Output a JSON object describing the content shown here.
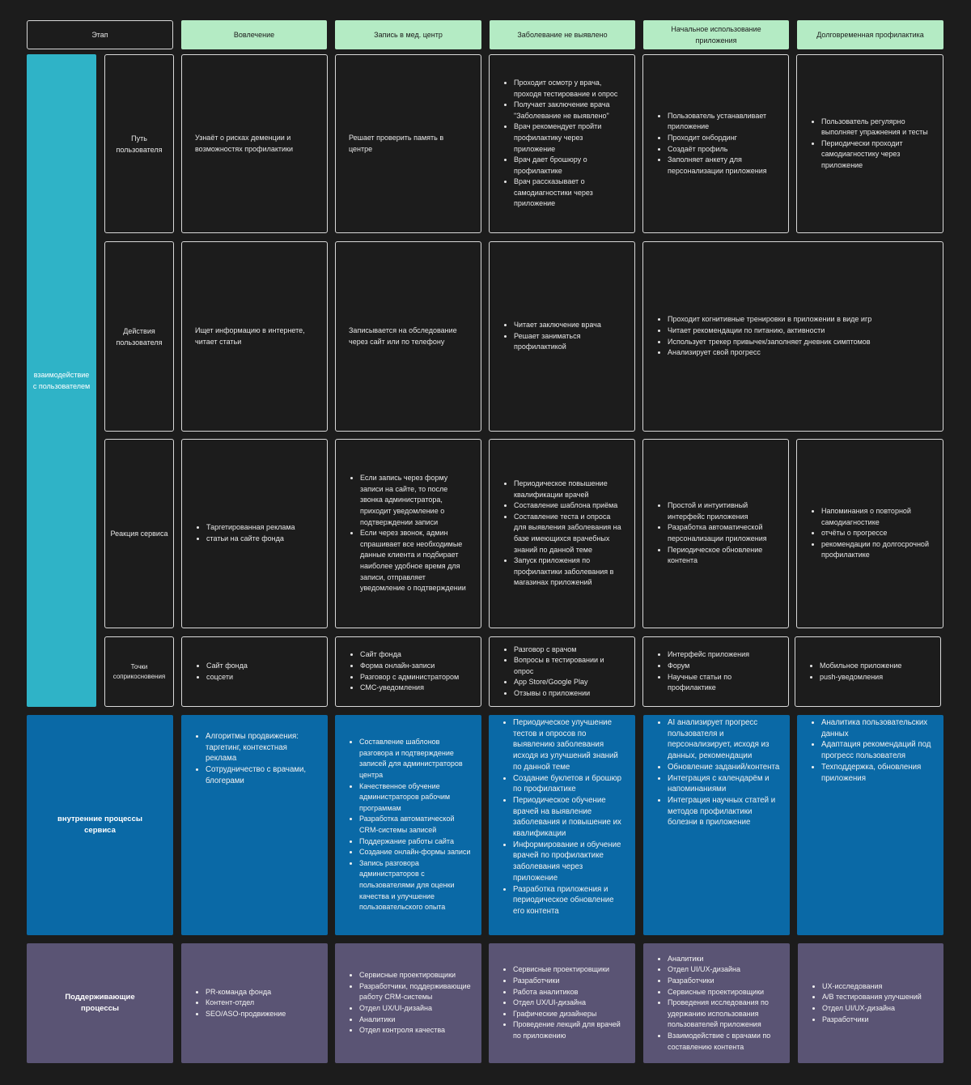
{
  "headers": {
    "stage": "Этап",
    "engagement": "Вовлечение",
    "registration": "Запись в мед. центр",
    "no_disease": "Заболевание не выявлено",
    "initial_use": "Начальное использование приложения",
    "long_term": "Долговременная профилактика"
  },
  "side": {
    "user_interaction": "взаимодействие с пользователем",
    "internal_processes": "внутренние процессы сервиса",
    "support_processes": "Поддерживающие процессы"
  },
  "rows": {
    "user_path": "Путь пользователя",
    "user_actions": "Действия пользователя",
    "service_reaction": "Реакция сервиса",
    "touchpoints": "Точки соприкосновения"
  },
  "path": {
    "engagement": "Узнаёт о рисках деменции и возможностях профилактики",
    "registration": "Решает проверить память в центре",
    "no_disease": [
      "Проходит осмотр у врача, проходя тестирование и опрос",
      "Получает заключение врача \"Заболевание не выявлено\"",
      "Врач рекомендует пройти профилактику через приложение",
      "Врач дает брошюру о профилактике",
      "Врач рассказывает о самодиагностики через приложение"
    ],
    "initial_use": [
      "Пользователь устанавливает приложение",
      "Проходит онбординг",
      "Создаёт профиль",
      "Заполняет анкету для персонализации приложения"
    ],
    "long_term": [
      "Пользователь регулярно выполняет упражнения и тесты",
      "Периодически проходит самодиагностику через приложение"
    ]
  },
  "actions": {
    "engagement": "Ищет информацию в интернете, читает статьи",
    "registration": "Записывается на обследование через сайт или по телефону",
    "no_disease": [
      "Читает заключение врача",
      "Решает заниматься профилактикой"
    ],
    "app": [
      "Проходит когнитивные тренировки в приложении в виде игр",
      "Читает рекомендации по питанию, активности",
      "Использует трекер привычек/заполняет дневник симптомов",
      "Анализирует свой прогресс"
    ]
  },
  "reaction": {
    "engagement": [
      "Таргетированная реклама",
      "статьи на сайте фонда"
    ],
    "registration": [
      "Если запись через форму записи на сайте, то после звонка администратора, приходит уведомление о подтверждении записи",
      "Если через звонок, админ спрашивает все необходимые данные клиента и подбирает наиболее удобное время для записи, отправляет уведомление о подтверждении"
    ],
    "no_disease": [
      "Периодическое повышение квалификации врачей",
      "Составление шаблона приёма",
      "Составление теста и опроса для выявления заболевания на базе имеющихся врачебных знаний по данной теме",
      "Запуск приложения по профилактики заболевания в магазинах приложений"
    ],
    "initial_use": [
      "Простой и интуитивный интерфейс приложения",
      "Разработка автоматической персонализации приложения",
      "Периодическое обновление контента"
    ],
    "long_term": [
      "Напоминания о повторной самодиагностике",
      "отчёты о прогрессе",
      "рекомендации по долгосрочной профилактике"
    ]
  },
  "touch": {
    "engagement": [
      "Сайт фонда",
      "соцсети"
    ],
    "registration": [
      "Сайт фонда",
      "Форма онлайн-записи",
      "Разговор с администратором",
      "СМС-уведомления"
    ],
    "no_disease": [
      "Разговор с врачом",
      "Вопросы в тестировании и опрос",
      "App Store/Google Play",
      "Отзывы о приложении"
    ],
    "initial_use": [
      "Интерфейс приложения",
      "Форум",
      "Научные статьи по профилактике"
    ],
    "long_term": [
      "Мобильное приложение",
      "push-уведомления"
    ]
  },
  "internal": {
    "engagement": [
      "Алгоритмы продвижения: таргетинг, контекстная реклама",
      "Сотрудничество с врачами, блогерами"
    ],
    "registration": [
      "Составление шаблонов разговора и подтверждение записей для администраторов центра",
      "Качественное обучение администраторов рабочим программам",
      "Разработка автоматической CRM-системы записей",
      "Поддержание работы сайта",
      "Создание онлайн-формы записи",
      "Запись разговора администраторов с пользователями для оценки качества и улучшение пользовательского опыта"
    ],
    "no_disease": [
      "Периодическое улучшение тестов и опросов по выявлению заболевания исходя из улучшений знаний по данной теме",
      "Создание буклетов и брошюр по профилактике",
      "Периодическое обучение врачей на выявление заболевания и повышение их квалификации",
      "Информирование и обучение врачей по профилактике заболевания через приложение",
      "Разработка приложения и периодическое обновление его контента"
    ],
    "initial_use": [
      "AI анализирует прогресс пользователя и персонализирует, исходя из данных, рекомендации",
      "Обновление заданий/контента",
      "Интеграция с календарём и напоминаниями",
      "Интеграция научных статей и методов профилактики болезни в приложение"
    ],
    "long_term": [
      "Аналитика пользовательских данных",
      "Адаптация рекомендаций под прогресс пользователя",
      "Техподдержка, обновления приложения"
    ]
  },
  "support": {
    "engagement": [
      "PR-команда фонда",
      "Контент-отдел",
      "SEO/ASO-продвижение"
    ],
    "registration": [
      "Сервисные проектировщики",
      "Разработчики, поддерживающие работу CRM-системы",
      "Отдел UX/UI-дизайна",
      "Аналитики",
      "Отдел контроля качества"
    ],
    "no_disease": [
      "Сервисные проектировщики",
      "Разработчики",
      "Работа аналитиков",
      "Отдел UX/UI-дизайна",
      "Графические дизайнеры",
      "Проведение лекций для врачей по приложению"
    ],
    "initial_use": [
      "Аналитики",
      "Отдел UI/UX-дизайна",
      "Разработчики",
      "Сервисные проектировщики",
      "Проведения исследования по удержанию использования пользователей приложения",
      "Взаимодействие с врачами по составлению контента"
    ],
    "long_term": [
      "UX-исследования",
      "A/B тестирования улучшений",
      "Отдел UI/UX-дизайна",
      "Разработчики"
    ]
  }
}
